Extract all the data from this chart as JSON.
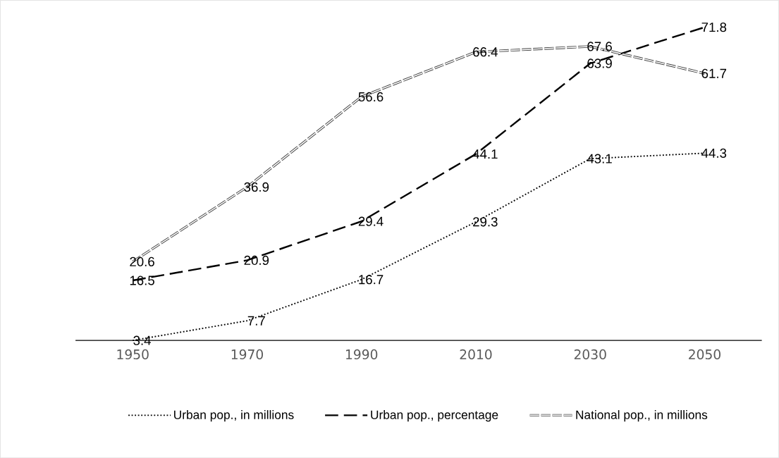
{
  "chart_data": {
    "type": "line",
    "categories": [
      "1950",
      "1970",
      "1990",
      "2010",
      "2030",
      "2050"
    ],
    "series": [
      {
        "name": "Urban pop., in millions",
        "color": "#000000",
        "line_style": "dotted",
        "values": [
          3.4,
          7.7,
          16.7,
          29.3,
          43.1,
          44.3
        ]
      },
      {
        "name": "Urban pop., percentage",
        "color": "#000000",
        "line_style": "dashed",
        "values": [
          16.5,
          20.9,
          29.4,
          44.1,
          63.9,
          71.8
        ]
      },
      {
        "name": "National pop., in millions",
        "color": "#404040",
        "line_style": "double",
        "values": [
          20.6,
          36.9,
          56.6,
          66.4,
          67.6,
          61.7
        ]
      }
    ],
    "data_labels": true,
    "legend": "bottom",
    "grid": false
  }
}
